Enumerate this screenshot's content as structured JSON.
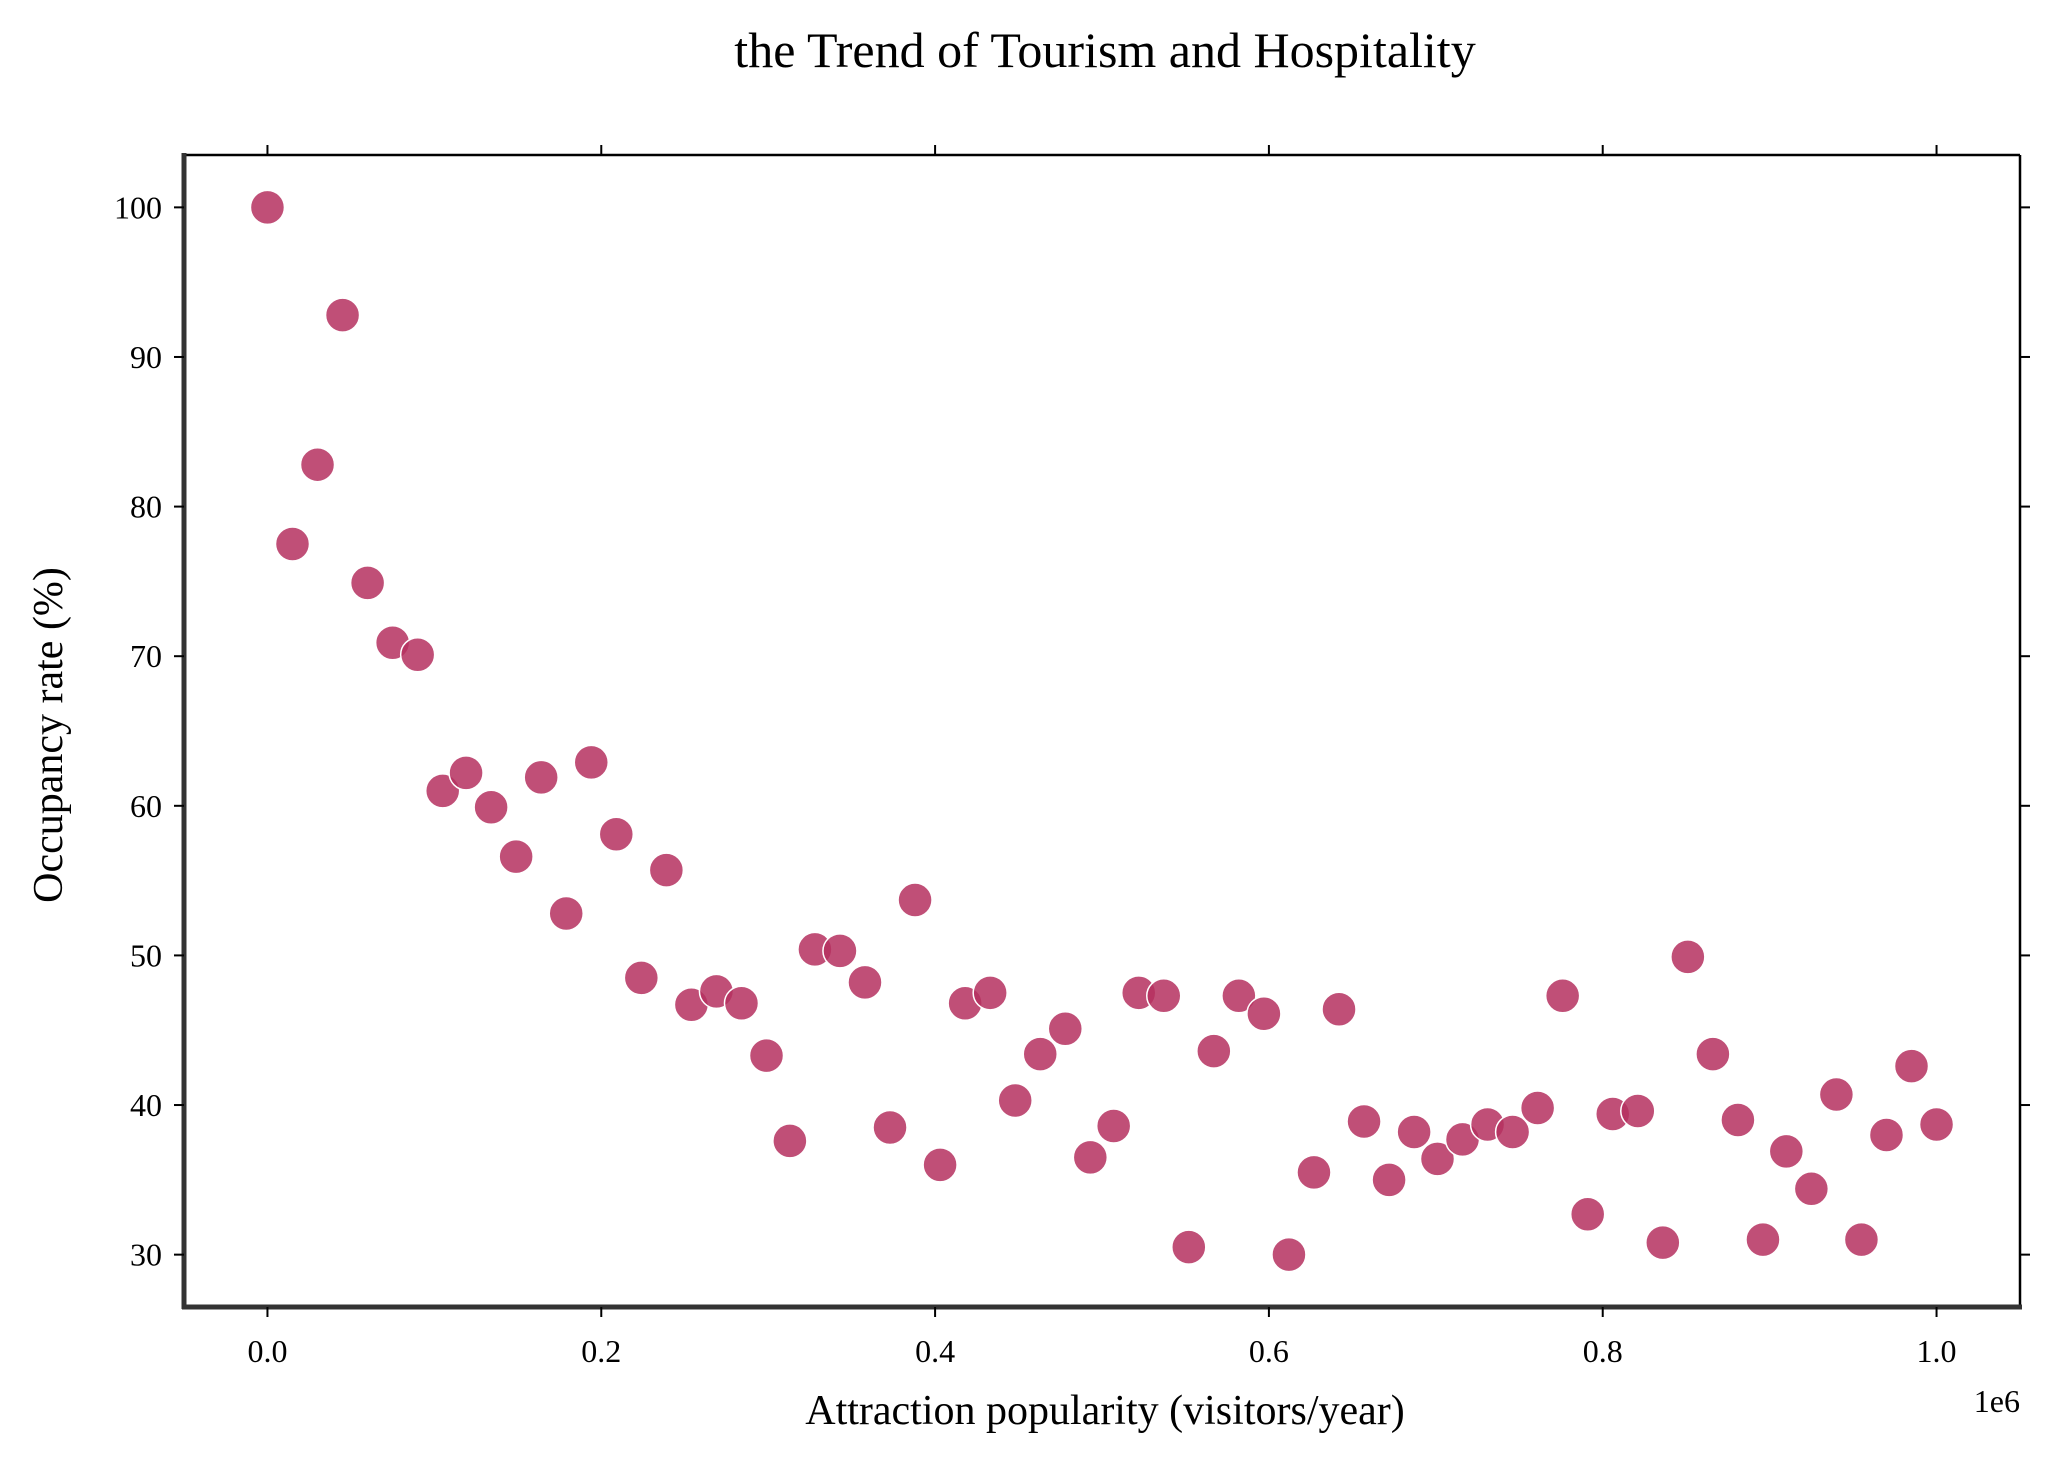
{
  "chart_data": {
    "type": "scatter",
    "title": "the Trend of Tourism and Hospitality",
    "xlabel": "Attraction popularity (visitors/year)",
    "ylabel": "Occupancy rate (%)",
    "x_offset_label": "1e6",
    "xlim": [
      -0.05,
      1.05
    ],
    "ylim": [
      26.5,
      103.5
    ],
    "x_ticks": [
      0.0,
      0.2,
      0.4,
      0.6,
      0.8,
      1.0
    ],
    "x_tick_labels": [
      "0.0",
      "0.2",
      "0.4",
      "0.6",
      "0.8",
      "1.0"
    ],
    "y_ticks": [
      30,
      40,
      50,
      60,
      70,
      80,
      90,
      100
    ],
    "y_tick_labels": [
      "30",
      "40",
      "50",
      "60",
      "70",
      "80",
      "90",
      "100"
    ],
    "grid": false,
    "legend": false,
    "point_color": "#b5305f",
    "x": [
      0.0,
      0.015,
      0.03,
      0.045,
      0.06,
      0.075,
      0.09,
      0.105,
      0.119,
      0.134,
      0.149,
      0.164,
      0.179,
      0.194,
      0.209,
      0.224,
      0.239,
      0.254,
      0.269,
      0.284,
      0.299,
      0.313,
      0.328,
      0.343,
      0.358,
      0.373,
      0.388,
      0.403,
      0.418,
      0.433,
      0.448,
      0.463,
      0.478,
      0.493,
      0.507,
      0.522,
      0.537,
      0.552,
      0.567,
      0.582,
      0.597,
      0.612,
      0.627,
      0.642,
      0.657,
      0.672,
      0.687,
      0.701,
      0.716,
      0.731,
      0.746,
      0.761,
      0.776,
      0.791,
      0.806,
      0.821,
      0.836,
      0.851,
      0.866,
      0.881,
      0.896,
      0.91,
      0.925,
      0.94,
      0.955,
      0.97,
      0.985,
      1.0
    ],
    "y": [
      100.0,
      77.5,
      82.8,
      92.8,
      74.9,
      70.9,
      70.1,
      61.0,
      62.2,
      59.9,
      56.6,
      61.9,
      52.8,
      62.9,
      58.1,
      48.5,
      55.7,
      46.7,
      47.6,
      46.8,
      43.3,
      37.6,
      50.4,
      50.3,
      48.2,
      38.5,
      53.7,
      36.0,
      46.8,
      47.5,
      40.3,
      43.4,
      45.1,
      36.5,
      38.6,
      47.5,
      47.3,
      30.5,
      43.6,
      47.3,
      46.1,
      30.0,
      35.5,
      46.4,
      38.9,
      35.0,
      38.2,
      36.4,
      37.7,
      38.7,
      38.2,
      39.8,
      47.3,
      32.7,
      39.4,
      39.6,
      30.8,
      49.9,
      43.4,
      39.0,
      31.0,
      36.9,
      34.4,
      40.7,
      31.0,
      38.0,
      42.6,
      38.7
    ]
  }
}
